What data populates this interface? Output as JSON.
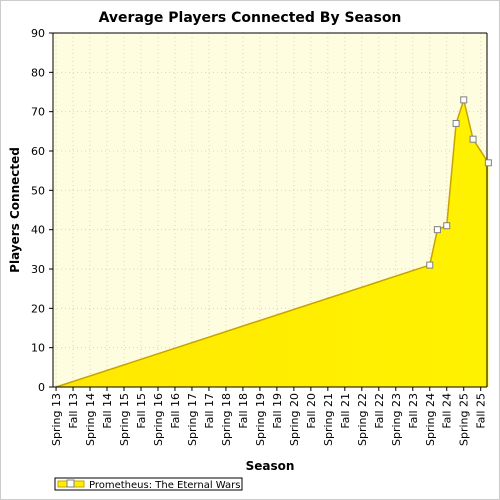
{
  "chart_data": {
    "type": "area",
    "title": "Average Players Connected By Season",
    "xlabel": "Season",
    "ylabel": "Players Connected",
    "ylim": [
      0,
      90
    ],
    "yticks": [
      0,
      10,
      20,
      30,
      40,
      50,
      60,
      70,
      80,
      90
    ],
    "categories": [
      "Spring 13",
      "Fall 13",
      "Spring 14",
      "Fall 14",
      "Spring 15",
      "Fall 15",
      "Spring 16",
      "Fall 16",
      "Spring 17",
      "Fall 17",
      "Spring 18",
      "Fall 18",
      "Spring 19",
      "Fall 19",
      "Spring 20",
      "Fall 20",
      "Spring 21",
      "Fall 21",
      "Spring 22",
      "Fall 22",
      "Spring 23",
      "Fall 23",
      "Spring 24",
      "Fall 24",
      "Spring 25",
      "Fall 25"
    ],
    "grid": true,
    "legend_position": "bottom-left",
    "colors": {
      "plot_background": "#fffde0",
      "area_fill": "#ffee00",
      "area_fill_light": "#fff44d",
      "line": "#c8a400",
      "marker_fill": "#ffffff",
      "marker_stroke": "#808080",
      "grid": "#d8d8b0"
    },
    "series": [
      {
        "name": "Prometheus: The Eternal Wars",
        "points": [
          {
            "x": "Spring 13",
            "y": 0
          },
          {
            "x": "Spring 24",
            "y": 31
          },
          {
            "x": "Spring 24",
            "y": 40,
            "offset": 0.45
          },
          {
            "x": "Fall 24",
            "y": 41,
            "offset": 0.0
          },
          {
            "x": "Fall 24",
            "y": 67,
            "offset": 0.55
          },
          {
            "x": "Spring 25",
            "y": 73,
            "offset": 0.0
          },
          {
            "x": "Spring 25",
            "y": 63,
            "offset": 0.55
          },
          {
            "x": "Fall 25",
            "y": 57,
            "offset": 0.45
          }
        ]
      }
    ]
  }
}
